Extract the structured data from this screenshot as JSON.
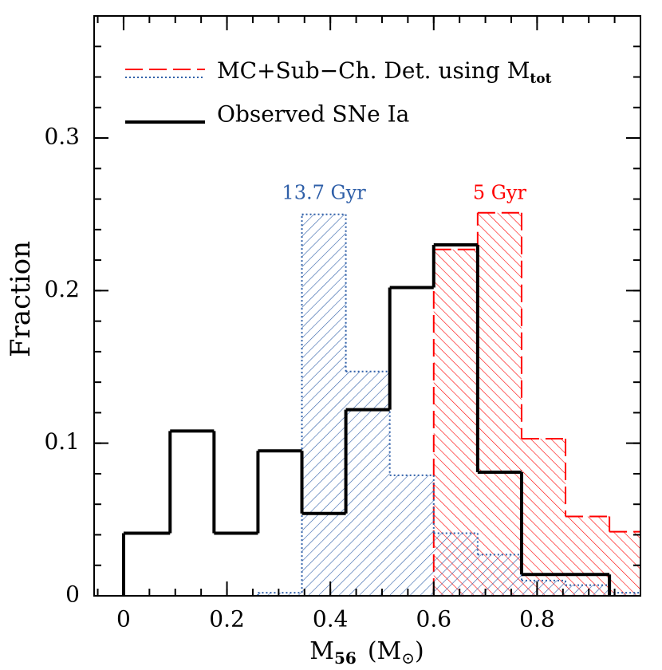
{
  "chart_data": {
    "type": "histogram",
    "xlabel": {
      "main": "M",
      "sub": "56",
      "unit": "(M",
      "unit_sub": "⊙",
      "close": ")"
    },
    "ylabel": "Fraction",
    "xlim": [
      -0.057,
      1.0
    ],
    "ylim": [
      0,
      0.38
    ],
    "xticks": [
      0,
      0.2,
      0.4,
      0.6,
      0.8
    ],
    "yticks": [
      0,
      0.1,
      0.2,
      0.3
    ],
    "legend_location": "upper left",
    "legend": [
      {
        "text": "MC+Sub−Ch. Det. using M",
        "subscript": "tot"
      },
      {
        "text": "Observed SNe Ia"
      }
    ],
    "series": [
      {
        "name": "5 Gyr",
        "color": "#ff0000",
        "style": "dashed",
        "hatch": "\\",
        "bins": [
          0.6,
          0.685,
          0.77,
          0.855,
          0.94,
          1.025
        ],
        "values": [
          0.227,
          0.251,
          0.103,
          0.052,
          0.042
        ]
      },
      {
        "name": "13.7 Gyr",
        "color": "#2f5fa8",
        "style": "dotted",
        "hatch": "/",
        "bins": [
          0.26,
          0.345,
          0.43,
          0.515,
          0.6,
          0.685,
          0.77,
          0.855,
          0.94,
          1.025
        ],
        "values": [
          0.002,
          0.25,
          0.147,
          0.079,
          0.041,
          0.027,
          0.01,
          0.007,
          0.002
        ]
      },
      {
        "name": "Observed SNe Ia",
        "color": "#000000",
        "style": "solid",
        "bins": [
          0,
          0.09,
          0.175,
          0.26,
          0.345,
          0.43,
          0.515,
          0.6,
          0.685,
          0.77,
          0.855,
          0.94
        ],
        "values": [
          0.041,
          0.108,
          0.041,
          0.095,
          0.054,
          0.122,
          0.202,
          0.23,
          0.081,
          0.014,
          0.014
        ]
      }
    ]
  }
}
